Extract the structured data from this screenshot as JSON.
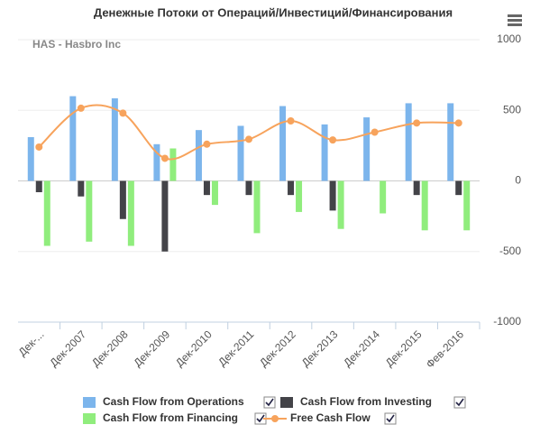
{
  "chart_data": {
    "type": "bar",
    "title": "Денежные Потоки от Операций/Инвестиций/Финансирования",
    "subtitle": "HAS - Hasbro Inc",
    "categories": [
      "Дек-...",
      "Дек-2007",
      "Дек-2008",
      "Дек-2009",
      "Дек-2010",
      "Дек-2011",
      "Дек-2012",
      "Дек-2013",
      "Дек-2014",
      "Дек-2015",
      "Фев-2016"
    ],
    "series": [
      {
        "name": "Cash Flow from Operations",
        "color": "#7cb5ec",
        "type": "bar",
        "values": [
          310,
          600,
          585,
          260,
          360,
          390,
          530,
          400,
          450,
          550,
          550
        ]
      },
      {
        "name": "Cash Flow from Investing",
        "color": "#434348",
        "type": "bar",
        "values": [
          -80,
          -110,
          -270,
          -500,
          -100,
          -100,
          -100,
          -210,
          null,
          -100,
          -100
        ]
      },
      {
        "name": "Cash Flow from Financing",
        "color": "#90ed7d",
        "type": "bar",
        "values": [
          -460,
          -430,
          -460,
          230,
          -170,
          -370,
          -220,
          -340,
          -230,
          -350,
          -350
        ]
      },
      {
        "name": "Free Cash Flow",
        "color": "#f7a35c",
        "type": "line",
        "values": [
          240,
          515,
          480,
          160,
          260,
          295,
          425,
          290,
          345,
          410,
          410
        ]
      }
    ],
    "ylim": [
      -1000,
      1000
    ],
    "yticks": [
      -1000,
      -500,
      0,
      500,
      1000
    ],
    "grid": true,
    "y_axis_side": "right",
    "legend": "bottom"
  }
}
